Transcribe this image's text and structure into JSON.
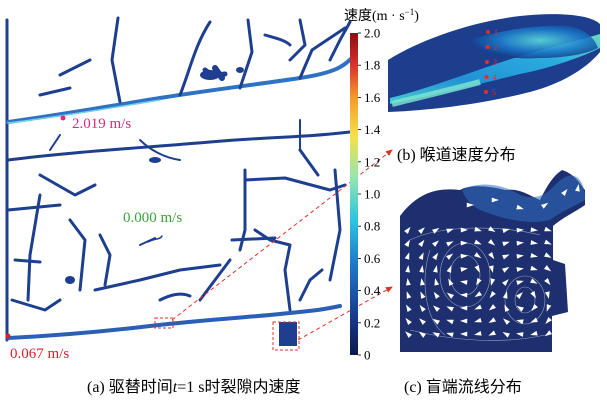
{
  "colorbar": {
    "title": "速度(m · s",
    "title_sup": "−1",
    "title_close": ")",
    "ticks": [
      "2.0",
      "1.8",
      "1.6",
      "1.4",
      "1.2",
      "1.0",
      "0.8",
      "0.6",
      "0.4",
      "0.2",
      "0"
    ],
    "stops": [
      "#0a1a4e",
      "#173a8c",
      "#1f78c8",
      "#2cc4e0",
      "#93e6b0",
      "#f6e04a",
      "#f39a2b",
      "#d9322b",
      "#8b0d12"
    ]
  },
  "annotations": {
    "max_velocity": "2.019 m/s",
    "zero_velocity": "0.000 m/s",
    "min_velocity": "0.067 m/s"
  },
  "throat_points": [
    "1",
    "2",
    "3",
    "4",
    "5"
  ],
  "captions": {
    "a_prefix": "(a) 驱替时间",
    "a_var": "t",
    "a_suffix": "=1 s时裂隙内速度",
    "b": "(b) 喉道速度分布",
    "c": "(c) 盲端流线分布"
  },
  "colors": {
    "fracture": "#1e3f8f",
    "fracture_edge": "#2d63b8",
    "annotation_magenta": "#e0287d",
    "annotation_green": "#3aa33a",
    "annotation_red": "#d8202a",
    "dashed_red": "#e0302a"
  }
}
